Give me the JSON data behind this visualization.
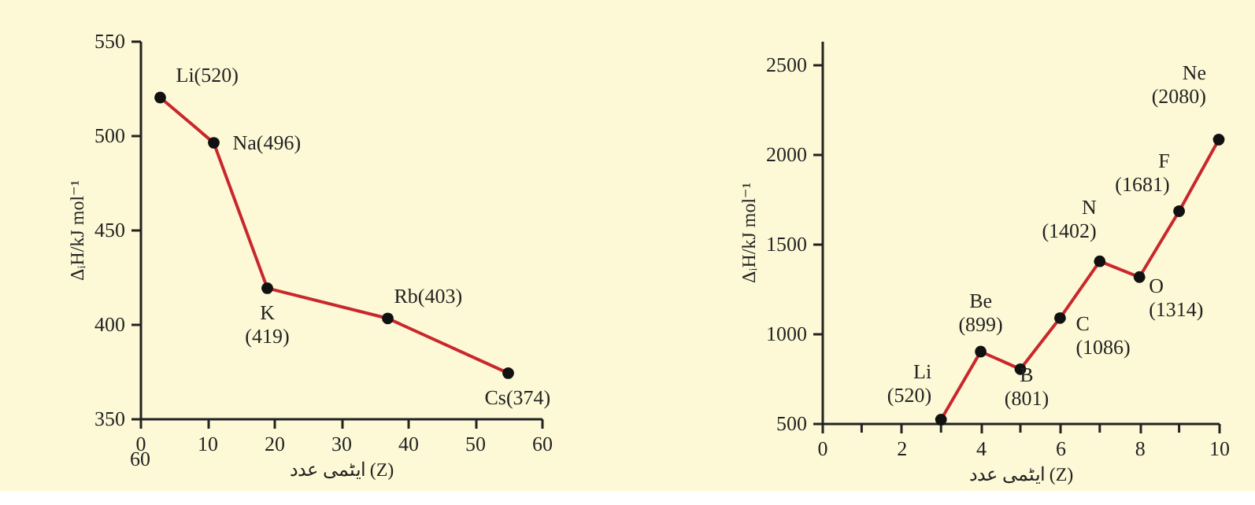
{
  "chart_data": [
    {
      "type": "line",
      "xlabel": "ایٹمی عدد (Z)",
      "ylabel": "ΔᵢH/kJ mol⁻¹",
      "x": [
        3,
        11,
        19,
        37,
        55
      ],
      "series": [
        {
          "color": "#c8282d",
          "values": [
            520,
            496,
            419,
            403,
            374
          ]
        }
      ],
      "xlim": [
        0,
        60
      ],
      "xticks": [
        0,
        10,
        20,
        30,
        40,
        50,
        60
      ],
      "ylim": [
        350,
        550
      ],
      "yticks": [
        350,
        400,
        450,
        500,
        550
      ],
      "marker": "circle",
      "grid": false,
      "annotations": [
        {
          "text": "Li(520)",
          "x": 3,
          "y": 520
        },
        {
          "text": "Na(496)",
          "x": 11,
          "y": 496
        },
        {
          "text": "K\n(419)",
          "x": 19,
          "y": 419
        },
        {
          "text": "Rb(403)",
          "x": 37,
          "y": 403
        },
        {
          "text": "Cs(374)",
          "x": 55,
          "y": 374
        },
        "60"
      ]
    },
    {
      "type": "line",
      "xlabel": "ایٹمی عدد (Z)",
      "ylabel": "ΔᵢH/kJ mol⁻¹",
      "x": [
        3,
        4,
        5,
        6,
        7,
        8,
        9,
        10
      ],
      "series": [
        {
          "color": "#c8282d",
          "values": [
            520,
            899,
            801,
            1086,
            1402,
            1314,
            1681,
            2080
          ]
        }
      ],
      "xlim": [
        0,
        10
      ],
      "xticks": [
        0,
        {
          "value": 1,
          "label": null
        },
        2,
        {
          "value": 3,
          "label": null
        },
        4,
        {
          "value": 5,
          "label": null
        },
        6,
        {
          "value": 7,
          "label": null
        },
        8,
        {
          "value": 9,
          "label": null
        },
        10
      ],
      "ylim": [
        500,
        2630
      ],
      "yticks": [
        500,
        1000,
        1500,
        2000,
        2500
      ],
      "marker": "circle",
      "grid": false,
      "annotations": [
        {
          "text": "Li\n(520)",
          "x": 3,
          "y": 520
        },
        {
          "text": "Be\n(899)",
          "x": 4,
          "y": 899
        },
        {
          "text": "B\n(801)",
          "x": 5,
          "y": 801
        },
        {
          "text": "C\n(1086)",
          "x": 6,
          "y": 1086
        },
        {
          "text": "N\n(1402)",
          "x": 7,
          "y": 1402
        },
        {
          "text": "O\n(1314)",
          "x": 8,
          "y": 1314
        },
        {
          "text": "F\n(1681)",
          "x": 9,
          "y": 1681
        },
        {
          "text": "Ne\n(2080)",
          "x": 10,
          "y": 2080
        }
      ]
    }
  ]
}
